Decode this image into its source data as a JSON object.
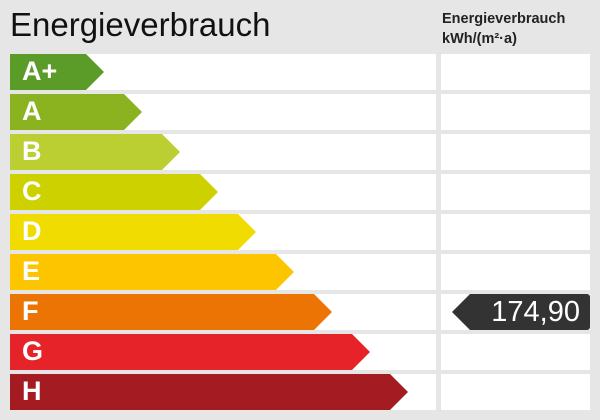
{
  "title": "Energieverbrauch",
  "unit_line1": "Energieverbrauch",
  "unit_line2": "kWh/(m²·a)",
  "classes": [
    {
      "label": "A+",
      "color": "#5b9b28"
    },
    {
      "label": "A",
      "color": "#8bb31f"
    },
    {
      "label": "B",
      "color": "#bccf32"
    },
    {
      "label": "C",
      "color": "#cdd100"
    },
    {
      "label": "D",
      "color": "#f0dc00"
    },
    {
      "label": "E",
      "color": "#fdc500"
    },
    {
      "label": "F",
      "color": "#ec7404"
    },
    {
      "label": "G",
      "color": "#e52329"
    },
    {
      "label": "H",
      "color": "#a51b22"
    }
  ],
  "value": "174,90",
  "value_class": "F",
  "marker_color": "#333333"
}
